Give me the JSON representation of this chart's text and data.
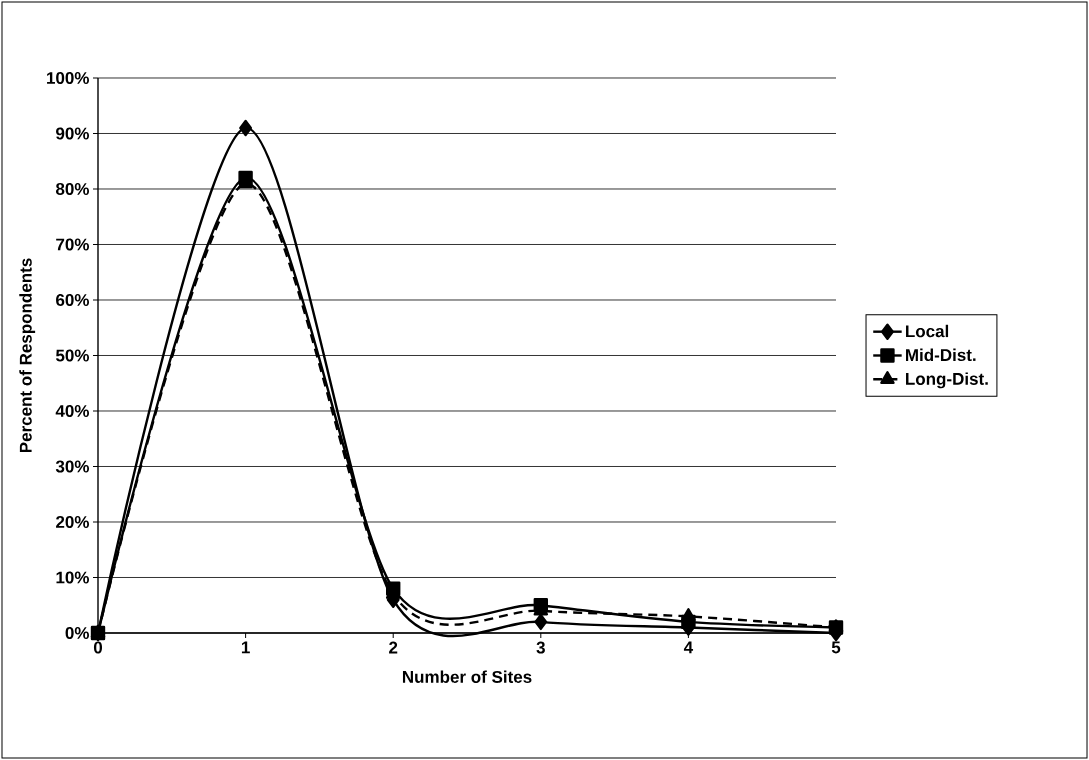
{
  "chart_data": {
    "type": "line",
    "xlabel": "Number of Sites",
    "ylabel": "Percent of Respondents",
    "x": [
      0,
      1,
      2,
      3,
      4,
      5
    ],
    "xlim": [
      0,
      5
    ],
    "xticks": [
      0,
      1,
      2,
      3,
      4,
      5
    ],
    "ylim": [
      0,
      100
    ],
    "yticks": [
      {
        "value": 0,
        "label": "0%"
      },
      {
        "value": 10,
        "label": "10%"
      },
      {
        "value": 20,
        "label": "20%"
      },
      {
        "value": 30,
        "label": "30%"
      },
      {
        "value": 40,
        "label": "40%"
      },
      {
        "value": 50,
        "label": "50%"
      },
      {
        "value": 60,
        "label": "60%"
      },
      {
        "value": 70,
        "label": "70%"
      },
      {
        "value": 80,
        "label": "80%"
      },
      {
        "value": 90,
        "label": "90%"
      },
      {
        "value": 100,
        "label": "100%"
      }
    ],
    "grid": "y",
    "legend": "right",
    "series": [
      {
        "name": "Local",
        "color": "#000000",
        "marker": "diamond",
        "line_style": "solid",
        "values": [
          0,
          91,
          6,
          2,
          1,
          0
        ]
      },
      {
        "name": "Mid-Dist.",
        "color": "#000000",
        "marker": "square",
        "line_style": "solid",
        "values": [
          0,
          82,
          8,
          5,
          2,
          1
        ]
      },
      {
        "name": "Long-Dist.",
        "color": "#000000",
        "marker": "triangle",
        "line_style": "dashed",
        "values": [
          0,
          81,
          7,
          4,
          3,
          1
        ]
      }
    ]
  }
}
